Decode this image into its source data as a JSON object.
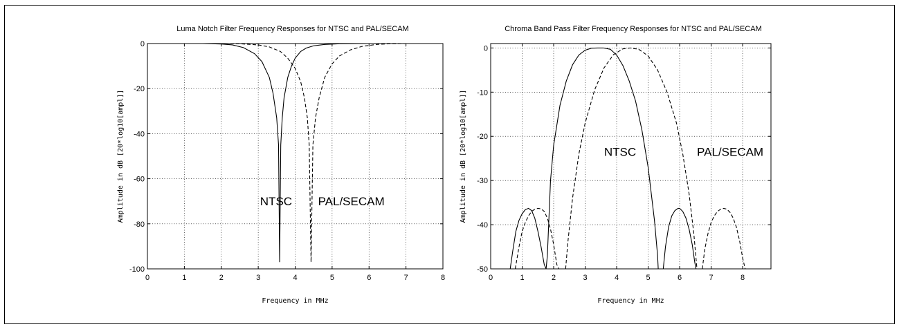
{
  "chart_data": [
    {
      "type": "line",
      "title": "Luma Notch Filter Frequency Responses for NTSC and PAL/SECAM",
      "xlabel": "Frequency in MHz",
      "ylabel": "Amplitude in dB [20*log10[ampl]]",
      "xlim": [
        0,
        8
      ],
      "ylim": [
        -100,
        0
      ],
      "xticks": [
        0,
        1,
        2,
        3,
        4,
        5,
        6,
        7,
        8
      ],
      "yticks": [
        0,
        -20,
        -40,
        -60,
        -80,
        -100
      ],
      "grid": true,
      "annotations": [
        {
          "text": "NTSC",
          "x": 3.05,
          "y": -70
        },
        {
          "text": "PAL/SECAM",
          "x": 4.62,
          "y": -70
        }
      ],
      "series": [
        {
          "style": "solid",
          "x": [
            0,
            1,
            1.5,
            2,
            2.3,
            2.6,
            2.9,
            3.1,
            3.3,
            3.4,
            3.5,
            3.55,
            3.58,
            3.61,
            3.65,
            3.7,
            3.8,
            3.9,
            4.0,
            4.15,
            4.3,
            4.5,
            4.8,
            5.2,
            6,
            7,
            8
          ],
          "y": [
            0,
            0,
            0,
            -0.2,
            -0.6,
            -1.8,
            -4.5,
            -8,
            -15,
            -22,
            -33,
            -45,
            -97,
            -45,
            -33,
            -24,
            -15,
            -10,
            -6.5,
            -3.5,
            -2,
            -1,
            -0.4,
            -0.1,
            0,
            0,
            0
          ]
        },
        {
          "style": "dashed",
          "x": [
            0,
            1,
            2,
            2.5,
            3,
            3.3,
            3.6,
            3.8,
            4.0,
            4.15,
            4.25,
            4.33,
            4.38,
            4.43,
            4.48,
            4.55,
            4.65,
            4.8,
            5.0,
            5.2,
            5.5,
            5.8,
            6.2,
            6.5,
            7,
            8
          ],
          "y": [
            0,
            0,
            0,
            -0.1,
            -0.6,
            -1.5,
            -3.5,
            -6.5,
            -11,
            -17,
            -24,
            -33,
            -45,
            -97,
            -45,
            -33,
            -24,
            -15,
            -9,
            -5.5,
            -2.8,
            -1.3,
            -0.4,
            -0.15,
            0,
            0
          ]
        }
      ]
    },
    {
      "type": "line",
      "title": "Chroma Band Pass Filter Frequency Responses for NTSC and PAL/SECAM",
      "xlabel": "Frequency in MHz",
      "ylabel": "Amplitude in dB [20*log10[ampl]]",
      "xlim": [
        0,
        8.9
      ],
      "ylim": [
        -50,
        1
      ],
      "xticks": [
        0,
        1,
        2,
        3,
        4,
        5,
        6,
        7,
        8
      ],
      "yticks": [
        0,
        -10,
        -20,
        -30,
        -40,
        -50
      ],
      "grid": true,
      "annotations": [
        {
          "text": "NTSC",
          "x": 3.6,
          "y": -23.5
        },
        {
          "text": "PAL/SECAM",
          "x": 6.55,
          "y": -23.5
        }
      ],
      "series": [
        {
          "style": "solid",
          "x": [
            0.62,
            0.7,
            0.8,
            0.9,
            1.0,
            1.1,
            1.2,
            1.3,
            1.4,
            1.5,
            1.6,
            1.7,
            1.76,
            1.8,
            1.9,
            2.0,
            2.2,
            2.4,
            2.6,
            2.8,
            3.0,
            3.2,
            3.4,
            3.58,
            3.8,
            4.0,
            4.2,
            4.4,
            4.6,
            4.8,
            5.0,
            5.1,
            5.2,
            5.3,
            5.32
          ],
          "y": [
            -50,
            -46,
            -41.5,
            -39,
            -37.5,
            -36.6,
            -36.3,
            -36.8,
            -38.5,
            -41.5,
            -45,
            -49,
            -50,
            -47,
            -30,
            -22,
            -13,
            -7.5,
            -3.8,
            -1.6,
            -0.5,
            -0.05,
            0,
            0,
            -0.3,
            -1.6,
            -4,
            -7.5,
            -12,
            -18.5,
            -27,
            -33,
            -39,
            -47,
            -50
          ]
        },
        {
          "style": "solid",
          "x": [
            5.48,
            5.55,
            5.65,
            5.75,
            5.85,
            5.95,
            6.0,
            6.1,
            6.2,
            6.3,
            6.4,
            6.48,
            6.52
          ],
          "y": [
            -50,
            -45,
            -40.5,
            -38,
            -36.8,
            -36.3,
            -36.3,
            -37,
            -38.5,
            -41,
            -44.5,
            -48.5,
            -50
          ]
        },
        {
          "style": "dashed",
          "x": [
            0.78,
            0.9,
            1.0,
            1.1,
            1.2,
            1.3,
            1.4,
            1.5,
            1.6,
            1.7,
            1.8,
            1.9,
            2.0,
            2.1,
            2.16
          ],
          "y": [
            -50,
            -45,
            -41.5,
            -39.5,
            -38,
            -37,
            -36.5,
            -36.3,
            -36.4,
            -37,
            -38.5,
            -41,
            -44.5,
            -49,
            -50
          ]
        },
        {
          "style": "dashed",
          "x": [
            2.38,
            2.45,
            2.6,
            2.8,
            3.0,
            3.3,
            3.6,
            3.9,
            4.2,
            4.43,
            4.7,
            5.0,
            5.3,
            5.6,
            5.9,
            6.1,
            6.3,
            6.45,
            6.55
          ],
          "y": [
            -50,
            -44,
            -34,
            -24,
            -17,
            -9.5,
            -4.5,
            -1.5,
            -0.2,
            0,
            -0.3,
            -1.8,
            -5,
            -10,
            -17,
            -24,
            -33,
            -42,
            -50
          ]
        },
        {
          "style": "dashed",
          "x": [
            6.72,
            6.8,
            6.9,
            7.0,
            7.1,
            7.2,
            7.3,
            7.4,
            7.5,
            7.6,
            7.7,
            7.8,
            7.9,
            8.0,
            8.08
          ],
          "y": [
            -50,
            -45.5,
            -42,
            -39.5,
            -38,
            -37,
            -36.5,
            -36.3,
            -36.5,
            -37.2,
            -38.5,
            -40.5,
            -43.5,
            -47.5,
            -50
          ]
        }
      ]
    }
  ]
}
